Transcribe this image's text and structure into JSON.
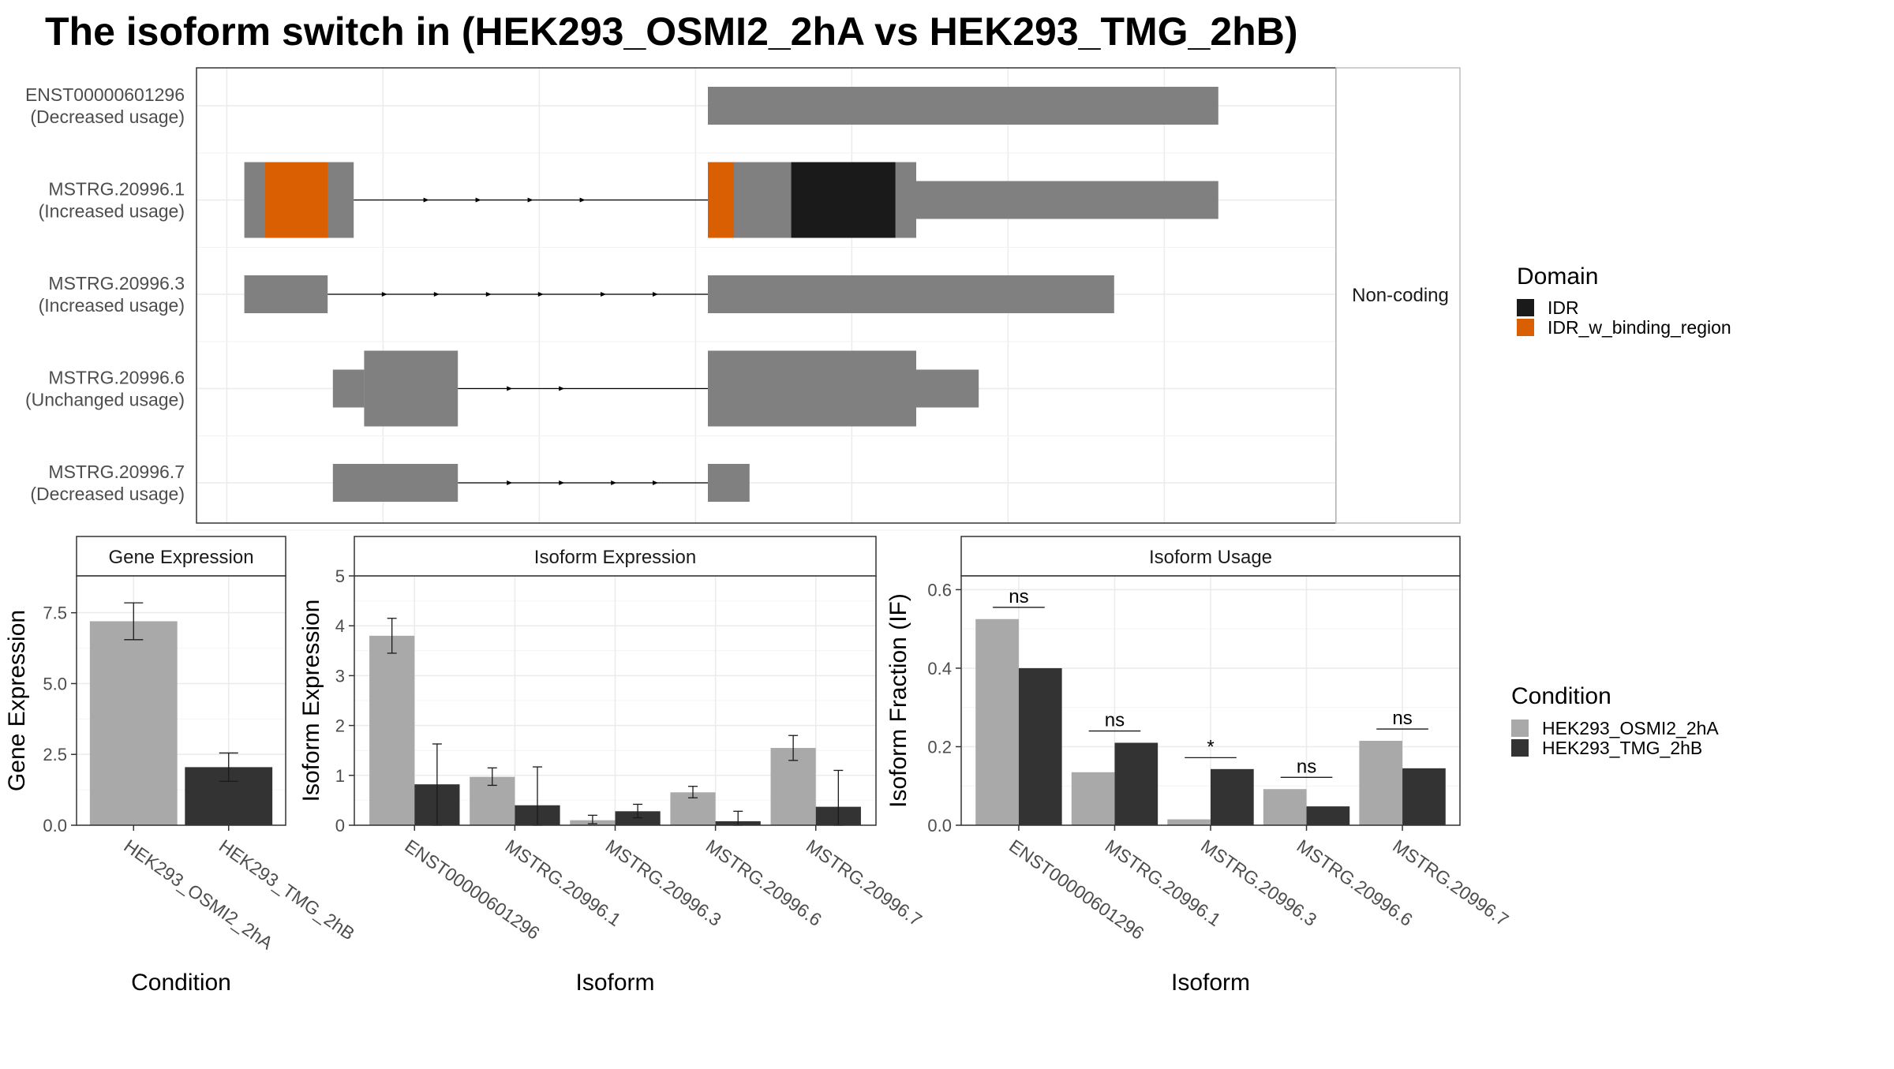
{
  "title": "The isoform switch in  (HEK293_OSMI2_2hA vs HEK293_TMG_2hB)",
  "colors": {
    "exon": "#808080",
    "idr": "#1a1a1a",
    "idr_binding": "#d95f02",
    "cond_a": "#a9a9a9",
    "cond_b": "#333333"
  },
  "chart_data": [
    {
      "type": "structure",
      "strip_label": "Non-coding",
      "isoforms": [
        {
          "name": "ENST00000601296",
          "usage": "(Decreased usage)",
          "exons": [
            [
              0.45,
              0.94
            ]
          ],
          "arrows": [],
          "domains": []
        },
        {
          "name": "MSTRG.20996.1",
          "usage": "(Increased usage)",
          "exons": [
            [
              0.005,
              0.11
            ],
            [
              0.45,
              0.94
            ]
          ],
          "arrows": [
            0.18,
            0.23,
            0.28,
            0.33
          ],
          "domains": [
            {
              "type": "IDR_w_binding_region",
              "range": [
                0.025,
                0.085
              ]
            },
            {
              "type": "IDR_w_binding_region",
              "range": [
                0.45,
                0.475
              ]
            },
            {
              "type": "IDR",
              "range": [
                0.53,
                0.63
              ]
            }
          ]
        },
        {
          "name": "MSTRG.20996.3",
          "usage": "(Increased usage)",
          "exons": [
            [
              0.005,
              0.085
            ],
            [
              0.45,
              0.84
            ]
          ],
          "arrows": [
            0.14,
            0.19,
            0.24,
            0.29,
            0.35,
            0.4
          ],
          "domains": []
        },
        {
          "name": "MSTRG.20996.6",
          "usage": "(Unchanged usage)",
          "exons": [
            [
              0.09,
              0.21
            ],
            [
              0.45,
              0.71
            ]
          ],
          "arrows": [
            0.26,
            0.31
          ],
          "domains": []
        },
        {
          "name": "MSTRG.20996.7",
          "usage": "(Decreased usage)",
          "exons": [
            [
              0.09,
              0.21
            ],
            [
              0.45,
              0.49
            ]
          ],
          "arrows": [
            0.26,
            0.31,
            0.36,
            0.4
          ],
          "domains": []
        }
      ]
    },
    {
      "type": "bar",
      "title": "Gene Expression",
      "xlabel": "Condition",
      "ylabel": "Gene Expression",
      "ylim": [
        0,
        8.8
      ],
      "yticks": [
        "0.0",
        "2.5",
        "5.0",
        "7.5"
      ],
      "categories": [
        "HEK293_OSMI2_2hA",
        "HEK293_TMG_2hB"
      ],
      "values": [
        7.2,
        2.05
      ],
      "errors": [
        [
          6.55,
          7.85
        ],
        [
          1.55,
          2.55
        ]
      ]
    },
    {
      "type": "bar",
      "title": "Isoform Expression",
      "xlabel": "Isoform",
      "ylabel": "Isoform Expression",
      "ylim": [
        0,
        5
      ],
      "yticks": [
        "0",
        "1",
        "2",
        "3",
        "4",
        "5"
      ],
      "categories": [
        "ENST00000601296",
        "MSTRG.20996.1",
        "MSTRG.20996.3",
        "MSTRG.20996.6",
        "MSTRG.20996.7"
      ],
      "series": [
        {
          "name": "HEK293_OSMI2_2hA",
          "values": [
            3.8,
            0.97,
            0.1,
            0.66,
            1.55
          ],
          "errors": [
            [
              3.45,
              4.15
            ],
            [
              0.8,
              1.15
            ],
            [
              0.03,
              0.2
            ],
            [
              0.55,
              0.78
            ],
            [
              1.3,
              1.8
            ]
          ]
        },
        {
          "name": "HEK293_TMG_2hB",
          "values": [
            0.82,
            0.4,
            0.28,
            0.08,
            0.37
          ],
          "errors": [
            [
              0.0,
              1.63
            ],
            [
              0.0,
              1.17
            ],
            [
              0.15,
              0.42
            ],
            [
              0.0,
              0.28
            ],
            [
              0.0,
              1.1
            ]
          ]
        }
      ]
    },
    {
      "type": "bar",
      "title": "Isoform Usage",
      "xlabel": "Isoform",
      "ylabel": "Isoform Fraction (IF)",
      "ylim": [
        0,
        0.635
      ],
      "yticks": [
        "0.0",
        "0.2",
        "0.4",
        "0.6"
      ],
      "categories": [
        "ENST00000601296",
        "MSTRG.20996.1",
        "MSTRG.20996.3",
        "MSTRG.20996.6",
        "MSTRG.20996.7"
      ],
      "series": [
        {
          "name": "HEK293_OSMI2_2hA",
          "values": [
            0.525,
            0.135,
            0.015,
            0.092,
            0.215
          ]
        },
        {
          "name": "HEK293_TMG_2hB",
          "values": [
            0.4,
            0.21,
            0.143,
            0.048,
            0.145
          ]
        }
      ],
      "significance": [
        "ns",
        "ns",
        "*",
        "ns",
        "ns"
      ],
      "sig_y": [
        0.555,
        0.24,
        0.172,
        0.122,
        0.245
      ]
    }
  ],
  "legend_domain": {
    "title": "Domain",
    "items": [
      {
        "label": "IDR",
        "color": "#1a1a1a"
      },
      {
        "label": "IDR_w_binding_region",
        "color": "#d95f02"
      }
    ]
  },
  "legend_condition": {
    "title": "Condition",
    "items": [
      {
        "label": "HEK293_OSMI2_2hA",
        "color": "#a9a9a9"
      },
      {
        "label": "HEK293_TMG_2hB",
        "color": "#333333"
      }
    ]
  }
}
